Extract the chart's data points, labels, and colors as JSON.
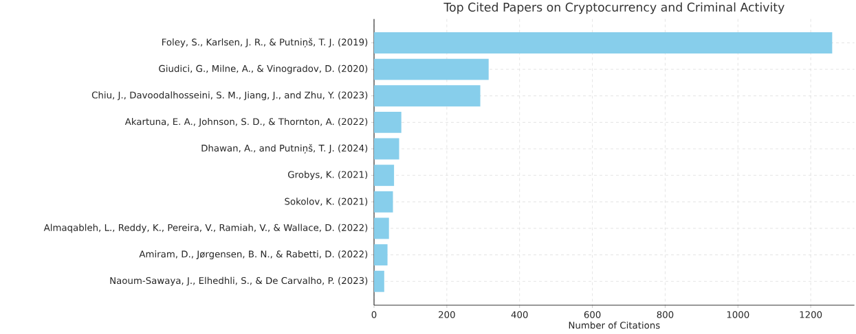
{
  "chart_data": {
    "type": "bar",
    "orientation": "horizontal",
    "title": "Top Cited Papers on Cryptocurrency and Criminal Activity",
    "xlabel": "Number of Citations",
    "categories": [
      "Foley, S., Karlsen, J. R., & Putniņš, T. J. (2019)",
      "Giudici, G., Milne, A., & Vinogradov, D. (2020)",
      "Chiu, J., Davoodalhosseini, S. M., Jiang, J., and Zhu, Y. (2023)",
      "Akartuna, E. A., Johnson, S. D., & Thornton, A. (2022)",
      "Dhawan, A., and Putniņš, T. J. (2024)",
      "Grobys, K. (2021)",
      "Sokolov, K. (2021)",
      "Almaqableh, L., Reddy, K., Pereira, V., Ramiah, V., & Wallace, D. (2022)",
      "Amiram, D., Jørgensen, B. N., & Rabetti, D. (2022)",
      "Naoum-Sawaya, J., Elhedhli, S., & De Carvalho, P. (2023)"
    ],
    "values": [
      1259,
      315,
      292,
      75,
      69,
      55,
      52,
      41,
      37,
      28
    ],
    "color": "#87ceeb",
    "xlim": [
      0,
      1320
    ],
    "xticks": [
      0,
      200,
      400,
      600,
      800,
      1000,
      1200
    ],
    "grid": true
  }
}
